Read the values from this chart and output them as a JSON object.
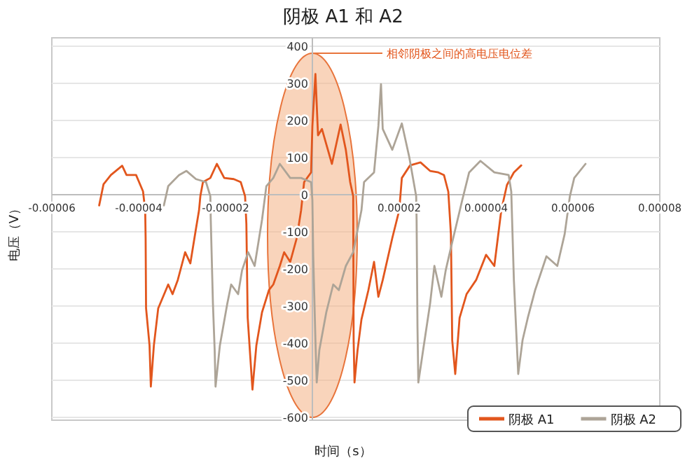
{
  "chart_data": {
    "type": "line",
    "title": "阴极 A1 和 A2",
    "xlabel": "时间（s）",
    "ylabel": "电压（V）",
    "xlim": [
      -6e-05,
      8e-05
    ],
    "xticks": [
      {
        "value": -6e-05,
        "label": "-0.00006"
      },
      {
        "value": -4e-05,
        "label": "-0.00004"
      },
      {
        "value": -2e-05,
        "label": "-0.00002"
      },
      {
        "value": 2e-05,
        "label": "0.00002"
      },
      {
        "value": 4e-05,
        "label": "0.00004"
      },
      {
        "value": 6e-05,
        "label": "0.00006"
      },
      {
        "value": 8e-05,
        "label": "0.00008"
      }
    ],
    "ylim": [
      -600,
      400
    ],
    "yticks": [
      -600,
      -500,
      -400,
      -300,
      -200,
      -100,
      0,
      100,
      200,
      300,
      400
    ],
    "grid": "y",
    "legend": "bottom right",
    "annotations": [
      "相邻阴极之间的高电压电位差"
    ],
    "series": [
      {
        "name": "阴极 A1",
        "color": "#e2561d",
        "x": [
          -4.91e-05,
          -4.81e-05,
          -4.64e-05,
          -4.38e-05,
          -4.28e-05,
          -4.06e-05,
          -3.9e-05,
          -3.85e-05,
          -3.84e-05,
          -3.83e-05,
          -3.75e-05,
          -3.72e-05,
          -3.65e-05,
          -3.55e-05,
          -3.32e-05,
          -3.22e-05,
          -3.1e-05,
          -2.93e-05,
          -2.81e-05,
          -2.68e-05,
          -2.61e-05,
          -2.58e-05,
          -2.52e-05,
          -2.35e-05,
          -2.2e-05,
          -2.03e-05,
          -1.81e-05,
          -1.65e-05,
          -1.55e-05,
          -1.52e-05,
          -1.49e-05,
          -1.38e-05,
          -1.29e-05,
          -1.16e-05,
          -1e-05,
          -9e-06,
          -7.5e-06,
          -6.5e-06,
          -5.1e-06,
          -3.6e-06,
          -2.6e-06,
          -1.9e-06,
          -3e-07,
          0,
          7e-07,
          1.3e-06,
          2.2e-06,
          3.2e-06,
          4.5e-06,
          6.5e-06,
          7.7e-06,
          8.7e-06,
          9.4e-06,
          9.5e-06,
          9.7e-06,
          1.04e-05,
          1.13e-05,
          1.29e-05,
          1.42e-05,
          1.52e-05,
          1.62e-05,
          1.84e-05,
          2e-05,
          2.06e-05,
          2.25e-05,
          2.49e-05,
          2.71e-05,
          2.9e-05,
          3.03e-05,
          3.13e-05,
          3.19e-05,
          3.22e-05,
          3.29e-05,
          3.39e-05,
          3.55e-05,
          3.77e-05,
          4e-05,
          4.19e-05,
          4.35e-05,
          4.48e-05,
          4.64e-05,
          4.81e-05
        ],
        "values": [
          -29,
          28,
          53,
          78,
          53,
          53,
          9,
          -42,
          -117,
          -306,
          -406,
          -517,
          -406,
          -306,
          -242,
          -268,
          -230,
          -155,
          -185,
          -91,
          -42,
          -4,
          34,
          45,
          83,
          45,
          42,
          34,
          -4,
          -79,
          -331,
          -525,
          -406,
          -317,
          -257,
          -242,
          -192,
          -155,
          -181,
          -117,
          -42,
          34,
          60,
          185,
          325,
          160,
          177,
          136,
          83,
          189,
          121,
          34,
          -4,
          -392,
          -506,
          -419,
          -336,
          -257,
          -181,
          -275,
          -230,
          -117,
          -42,
          45,
          79,
          87,
          64,
          60,
          53,
          8,
          -106,
          -392,
          -483,
          -332,
          -268,
          -230,
          -162,
          -192,
          -42,
          26,
          60,
          79
        ]
      },
      {
        "name": "阴极 A2",
        "color": "#ada497",
        "x": [
          -3.42e-05,
          -3.32e-05,
          -3.07e-05,
          -2.9e-05,
          -2.68e-05,
          -2.45e-05,
          -2.35e-05,
          -2.34e-05,
          -2.29e-05,
          -2.25e-05,
          -2.23e-05,
          -2.13e-05,
          -1.96e-05,
          -1.87e-05,
          -1.71e-05,
          -1.62e-05,
          -1.48e-05,
          -1.33e-05,
          -1.16e-05,
          -1.06e-05,
          -9e-06,
          -7.5e-06,
          -5.1e-06,
          -2.6e-06,
          -3e-07,
          0,
          2e-07,
          7e-07,
          1e-06,
          1.6e-06,
          3.2e-06,
          4.8e-06,
          6.1e-06,
          7.7e-06,
          9.4e-06,
          1.13e-05,
          1.19e-05,
          1.42e-05,
          1.52e-05,
          1.58e-05,
          1.62e-05,
          1.84e-05,
          2.06e-05,
          2.23e-05,
          2.39e-05,
          2.4e-05,
          2.42e-05,
          2.44e-05,
          2.55e-05,
          2.71e-05,
          2.81e-05,
          2.97e-05,
          3.07e-05,
          3.19e-05,
          3.45e-05,
          3.61e-05,
          3.87e-05,
          4.19e-05,
          4.52e-05,
          4.58e-05,
          4.64e-05,
          4.74e-05,
          4.84e-05,
          4.96e-05,
          5.13e-05,
          5.39e-05,
          5.64e-05,
          5.81e-05,
          5.93e-05,
          6.03e-05,
          6.29e-05
        ],
        "values": [
          -29,
          23,
          53,
          64,
          42,
          34,
          -4,
          -68,
          -294,
          -419,
          -517,
          -406,
          -294,
          -242,
          -268,
          -204,
          -155,
          -192,
          -68,
          23,
          45,
          83,
          45,
          45,
          34,
          -15,
          -166,
          -392,
          -506,
          -419,
          -317,
          -242,
          -257,
          -192,
          -155,
          -42,
          34,
          60,
          185,
          298,
          177,
          121,
          192,
          102,
          -4,
          -68,
          -355,
          -506,
          -419,
          -294,
          -192,
          -275,
          -204,
          -143,
          -15,
          60,
          91,
          60,
          53,
          8,
          -230,
          -483,
          -392,
          -332,
          -257,
          -166,
          -192,
          -106,
          -4,
          45,
          83
        ]
      }
    ]
  }
}
